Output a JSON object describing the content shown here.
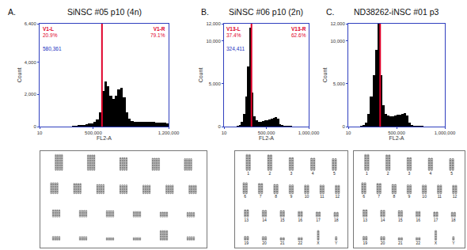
{
  "chart_data": [
    {
      "type": "histogram",
      "panel": "A.",
      "title": "SiNSC #05 p10 (4n)",
      "x_label": "FL2-A",
      "y_label": "Count",
      "bins": [
        0,
        25000,
        50000,
        75000,
        100000,
        125000,
        150000,
        175000,
        200000,
        225000,
        250000,
        275000,
        300000,
        325000,
        350000,
        375000,
        400000,
        425000,
        450000,
        475000,
        500000,
        525000,
        550000,
        575000,
        600000,
        625000,
        650000,
        675000,
        700000,
        725000,
        750000,
        775000,
        800000,
        825000,
        850000,
        875000,
        900000,
        925000,
        950000,
        975000,
        1000000,
        1025000,
        1050000,
        1075000,
        1100000,
        1125000,
        1150000,
        1175000,
        1200000
      ],
      "counts": [
        0,
        0,
        0,
        0,
        0,
        0,
        0,
        0,
        0,
        0,
        0,
        20,
        40,
        60,
        80,
        100,
        120,
        150,
        180,
        220,
        300,
        450,
        900,
        2200,
        2800,
        2500,
        1900,
        1700,
        1900,
        2300,
        2400,
        1800,
        900,
        500,
        350,
        300,
        300,
        300,
        320,
        300,
        280,
        300,
        290,
        270,
        260,
        250,
        240,
        200
      ],
      "color": "#000000",
      "xlim": [
        10,
        1200000
      ],
      "xticks": [
        10,
        {
          "value": 500000,
          "label": "500,000"
        },
        {
          "value": 1200000,
          "label": "1,200,000"
        }
      ],
      "ylim": [
        0,
        6400
      ],
      "yticks": [
        0,
        {
          "value": 2000,
          "label": "2,000"
        },
        {
          "value": 4000,
          "label": "4,000"
        },
        {
          "value": 6400,
          "label": "6,400"
        }
      ],
      "grid": false,
      "gate": {
        "position": {
          "value": 580361,
          "label": "580,361"
        },
        "regions": [
          {
            "name": "V1-L",
            "value": 20.9,
            "label": "20.9%"
          },
          {
            "name": "V1-R",
            "value": 79.1,
            "label": "79.1%"
          }
        ]
      },
      "karyotype": {
        "copies": 4
      }
    },
    {
      "type": "histogram",
      "panel": "B.",
      "title": "SiNSC #06 p10 (2n)",
      "x_label": "FL2-A",
      "y_label": "Count",
      "bins": [
        0,
        25000,
        50000,
        75000,
        100000,
        125000,
        150000,
        175000,
        200000,
        225000,
        250000,
        275000,
        300000,
        325000,
        350000,
        375000,
        400000,
        425000,
        450000,
        475000,
        500000,
        525000,
        550000,
        575000,
        600000,
        625000,
        650000,
        675000,
        700000,
        725000,
        750000,
        775000,
        800000,
        825000,
        850000,
        875000,
        900000,
        925000,
        950000,
        975000,
        1000000
      ],
      "counts": [
        0,
        0,
        0,
        0,
        0,
        0,
        50,
        200,
        600,
        1500,
        3500,
        7000,
        11500,
        4000,
        1200,
        700,
        600,
        600,
        650,
        700,
        750,
        800,
        900,
        1000,
        1100,
        900,
        300,
        150,
        100,
        80,
        60,
        50,
        40,
        30,
        30,
        20,
        20,
        10,
        10,
        0
      ],
      "color": "#000000",
      "xlim": [
        10,
        1000000
      ],
      "xticks": [
        10,
        {
          "value": 500000,
          "label": "500,000"
        },
        {
          "value": 1000000,
          "label": "1,000,000"
        }
      ],
      "ylim": [
        0,
        12000
      ],
      "yticks": [
        0,
        {
          "value": 5000,
          "label": "5,000"
        },
        {
          "value": 10000,
          "label": "10,000"
        },
        {
          "value": 12000,
          "label": "12,000"
        }
      ],
      "grid": false,
      "gate": {
        "position": {
          "value": 324411,
          "label": "324,411"
        },
        "regions": [
          {
            "name": "V13-L",
            "value": 37.4,
            "label": "37.4%"
          },
          {
            "name": "V13-R",
            "value": 62.6,
            "label": "62.6%"
          }
        ]
      },
      "karyotype": {
        "copies": 2,
        "labels": [
          "1",
          "2",
          "3",
          "4",
          "5",
          "6",
          "7",
          "8",
          "9",
          "10",
          "11",
          "12",
          "13",
          "14",
          "15",
          "16",
          "17",
          "18",
          "19",
          "20",
          "21",
          "22",
          "X",
          "Y"
        ]
      }
    },
    {
      "type": "histogram",
      "panel": "C.",
      "title": "ND38262-iNSC #01 p3",
      "x_label": "FL2-A",
      "y_label": "Count",
      "bins": [
        0,
        25000,
        50000,
        75000,
        100000,
        125000,
        150000,
        175000,
        200000,
        225000,
        250000,
        275000,
        300000,
        325000,
        350000,
        375000,
        400000,
        425000,
        450000,
        475000,
        500000,
        525000,
        550000,
        575000,
        600000,
        625000,
        650000,
        675000,
        700000,
        725000,
        750000,
        775000,
        800000,
        825000,
        850000,
        875000,
        900000,
        925000,
        950000,
        975000,
        1000000
      ],
      "counts": [
        0,
        0,
        0,
        0,
        0,
        50,
        200,
        500,
        1500,
        3500,
        6000,
        9000,
        12000,
        6000,
        2500,
        1500,
        1300,
        1200,
        1200,
        1300,
        1400,
        1400,
        1500,
        1600,
        1300,
        500,
        200,
        100,
        80,
        60,
        50,
        40,
        30,
        30,
        20,
        20,
        10,
        10,
        0,
        0
      ],
      "color": "#000000",
      "xlim": [
        10,
        1000000
      ],
      "xticks": [
        10,
        {
          "value": 500000,
          "label": "500,000"
        },
        {
          "value": 1000000,
          "label": "1,000,000"
        }
      ],
      "ylim": [
        0,
        12000
      ],
      "yticks": [
        0,
        {
          "value": 5000,
          "label": "5,000"
        },
        {
          "value": 10000,
          "label": "10,000"
        },
        {
          "value": 12000,
          "label": "12,000"
        }
      ],
      "grid": false,
      "gate": {
        "position": 330000
      },
      "karyotype": {
        "copies": 2,
        "labels": [
          "1",
          "2",
          "3",
          "4",
          "5",
          "6",
          "7",
          "8",
          "9",
          "10",
          "11",
          "12",
          "13",
          "14",
          "15",
          "16",
          "17",
          "18",
          "19",
          "20",
          "21",
          "22",
          "X",
          "Y"
        ]
      }
    }
  ]
}
